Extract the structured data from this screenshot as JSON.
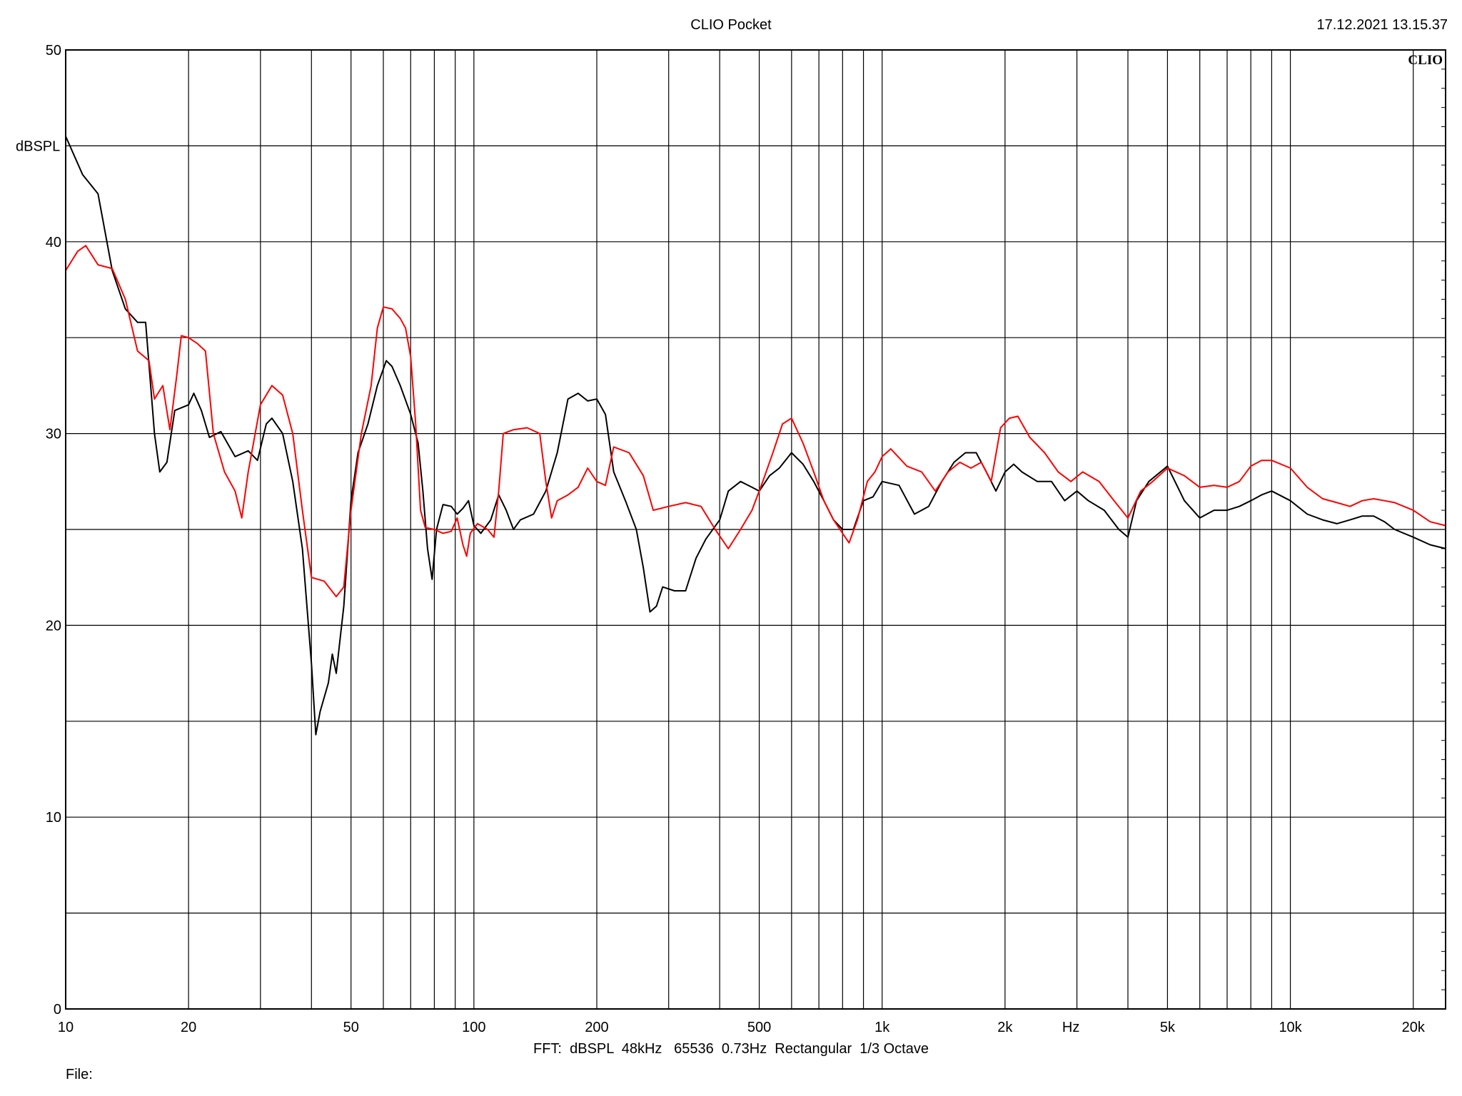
{
  "header": {
    "title": "CLIO Pocket",
    "timestamp": "17.12.2021 13.15.37"
  },
  "footer": {
    "settings": "FFT:  dBSPL  48kHz   65536  0.73Hz  Rectangular  1/3 Octave",
    "file_label": "File:"
  },
  "chart_data": {
    "type": "line",
    "brand": "CLIO",
    "ylabel": "dBSPL",
    "xlabel": "Hz",
    "xscale": "log",
    "xlim": [
      10,
      24000
    ],
    "ylim": [
      0,
      50
    ],
    "grid": true,
    "y_ticks": [
      {
        "value": 0,
        "label": "0"
      },
      {
        "value": 10,
        "label": "10"
      },
      {
        "value": 20,
        "label": "20"
      },
      {
        "value": 30,
        "label": "30"
      },
      {
        "value": 40,
        "label": "40"
      },
      {
        "value": 50,
        "label": "50"
      }
    ],
    "y_gridlines": [
      0,
      5,
      10,
      15,
      20,
      25,
      30,
      35,
      40,
      45,
      50
    ],
    "x_ticks": [
      {
        "value": 10,
        "label": "10"
      },
      {
        "value": 20,
        "label": "20"
      },
      {
        "value": 50,
        "label": "50"
      },
      {
        "value": 100,
        "label": "100"
      },
      {
        "value": 200,
        "label": "200"
      },
      {
        "value": 500,
        "label": "500"
      },
      {
        "value": 1000,
        "label": "1k"
      },
      {
        "value": 2000,
        "label": "2k"
      },
      {
        "value": 5000,
        "label": "5k"
      },
      {
        "value": 10000,
        "label": "10k"
      },
      {
        "value": 20000,
        "label": "20k"
      }
    ],
    "x_gridlines": [
      20,
      30,
      40,
      50,
      60,
      70,
      80,
      90,
      100,
      200,
      300,
      400,
      500,
      600,
      700,
      800,
      900,
      1000,
      2000,
      3000,
      4000,
      5000,
      6000,
      7000,
      8000,
      9000,
      10000,
      20000
    ],
    "series": [
      {
        "color": "#000000",
        "points": [
          [
            10,
            45.5
          ],
          [
            11,
            43.5
          ],
          [
            12,
            42.5
          ],
          [
            13,
            38.5
          ],
          [
            14,
            36.5
          ],
          [
            15,
            35.8
          ],
          [
            15.7,
            35.8
          ],
          [
            16.5,
            30
          ],
          [
            17,
            28
          ],
          [
            17.7,
            28.5
          ],
          [
            18.5,
            31.2
          ],
          [
            20,
            31.5
          ],
          [
            20.6,
            32.1
          ],
          [
            21.5,
            31.2
          ],
          [
            22.5,
            29.8
          ],
          [
            24,
            30.1
          ],
          [
            26,
            28.8
          ],
          [
            28,
            29.1
          ],
          [
            29.5,
            28.6
          ],
          [
            31,
            30.5
          ],
          [
            32,
            30.8
          ],
          [
            34,
            30
          ],
          [
            36,
            27.5
          ],
          [
            38,
            24
          ],
          [
            40,
            18
          ],
          [
            41,
            14.3
          ],
          [
            42,
            15.5
          ],
          [
            44,
            17
          ],
          [
            45,
            18.5
          ],
          [
            46,
            17.5
          ],
          [
            48,
            21
          ],
          [
            50,
            26.5
          ],
          [
            52,
            29
          ],
          [
            55,
            30.5
          ],
          [
            58,
            32.5
          ],
          [
            61,
            33.8
          ],
          [
            63,
            33.5
          ],
          [
            66,
            32.5
          ],
          [
            70,
            31
          ],
          [
            73,
            29.5
          ],
          [
            75,
            27
          ],
          [
            77,
            24
          ],
          [
            79,
            22.4
          ],
          [
            81,
            25
          ],
          [
            84,
            26.3
          ],
          [
            88,
            26.2
          ],
          [
            91,
            25.8
          ],
          [
            94,
            26.1
          ],
          [
            97,
            26.5
          ],
          [
            100,
            25.2
          ],
          [
            104,
            24.8
          ],
          [
            110,
            25.5
          ],
          [
            115,
            26.8
          ],
          [
            120,
            26
          ],
          [
            125,
            25
          ],
          [
            130,
            25.5
          ],
          [
            140,
            25.8
          ],
          [
            150,
            27
          ],
          [
            160,
            29
          ],
          [
            170,
            31.8
          ],
          [
            180,
            32.1
          ],
          [
            190,
            31.7
          ],
          [
            200,
            31.8
          ],
          [
            210,
            31
          ],
          [
            220,
            28
          ],
          [
            235,
            26.5
          ],
          [
            250,
            25
          ],
          [
            260,
            23
          ],
          [
            270,
            20.7
          ],
          [
            280,
            21
          ],
          [
            290,
            22
          ],
          [
            310,
            21.8
          ],
          [
            330,
            21.8
          ],
          [
            350,
            23.5
          ],
          [
            370,
            24.5
          ],
          [
            400,
            25.5
          ],
          [
            420,
            27
          ],
          [
            450,
            27.5
          ],
          [
            480,
            27.2
          ],
          [
            500,
            27
          ],
          [
            530,
            27.8
          ],
          [
            560,
            28.2
          ],
          [
            600,
            29
          ],
          [
            640,
            28.4
          ],
          [
            680,
            27.5
          ],
          [
            720,
            26.5
          ],
          [
            760,
            25.5
          ],
          [
            800,
            25
          ],
          [
            850,
            25
          ],
          [
            900,
            26.5
          ],
          [
            950,
            26.7
          ],
          [
            1000,
            27.5
          ],
          [
            1100,
            27.3
          ],
          [
            1200,
            25.8
          ],
          [
            1300,
            26.2
          ],
          [
            1400,
            27.5
          ],
          [
            1500,
            28.5
          ],
          [
            1600,
            29
          ],
          [
            1700,
            29
          ],
          [
            1800,
            28
          ],
          [
            1900,
            27
          ],
          [
            2000,
            28
          ],
          [
            2100,
            28.4
          ],
          [
            2200,
            28
          ],
          [
            2400,
            27.5
          ],
          [
            2600,
            27.5
          ],
          [
            2800,
            26.5
          ],
          [
            3000,
            27
          ],
          [
            3200,
            26.5
          ],
          [
            3500,
            26
          ],
          [
            3800,
            25
          ],
          [
            4000,
            24.6
          ],
          [
            4200,
            26.5
          ],
          [
            4500,
            27.5
          ],
          [
            5000,
            28.3
          ],
          [
            5500,
            26.5
          ],
          [
            6000,
            25.6
          ],
          [
            6500,
            26
          ],
          [
            7000,
            26
          ],
          [
            7500,
            26.2
          ],
          [
            8000,
            26.5
          ],
          [
            8500,
            26.8
          ],
          [
            9000,
            27
          ],
          [
            10000,
            26.5
          ],
          [
            11000,
            25.8
          ],
          [
            12000,
            25.5
          ],
          [
            13000,
            25.3
          ],
          [
            14000,
            25.5
          ],
          [
            15000,
            25.7
          ],
          [
            16000,
            25.7
          ],
          [
            17000,
            25.4
          ],
          [
            18000,
            25
          ],
          [
            20000,
            24.6
          ],
          [
            22000,
            24.2
          ],
          [
            24000,
            24
          ]
        ]
      },
      {
        "color": "#ff0000",
        "points": [
          [
            10,
            38.5
          ],
          [
            10.7,
            39.5
          ],
          [
            11.2,
            39.8
          ],
          [
            12,
            38.8
          ],
          [
            13,
            38.6
          ],
          [
            14,
            37
          ],
          [
            15,
            34.3
          ],
          [
            16,
            33.8
          ],
          [
            16.5,
            31.8
          ],
          [
            17.3,
            32.5
          ],
          [
            18,
            30.2
          ],
          [
            18.7,
            33
          ],
          [
            19.2,
            35.1
          ],
          [
            20,
            35
          ],
          [
            21,
            34.7
          ],
          [
            22,
            34.3
          ],
          [
            23,
            30
          ],
          [
            24.5,
            28
          ],
          [
            26,
            27
          ],
          [
            27,
            25.6
          ],
          [
            28,
            28
          ],
          [
            30,
            31.5
          ],
          [
            32,
            32.5
          ],
          [
            34,
            32
          ],
          [
            36,
            30
          ],
          [
            38,
            26
          ],
          [
            40,
            22.5
          ],
          [
            43,
            22.3
          ],
          [
            46,
            21.5
          ],
          [
            48,
            22
          ],
          [
            50,
            26
          ],
          [
            53,
            30
          ],
          [
            56,
            32.5
          ],
          [
            58,
            35.5
          ],
          [
            60,
            36.6
          ],
          [
            63,
            36.5
          ],
          [
            66,
            36
          ],
          [
            68,
            35.5
          ],
          [
            70,
            34
          ],
          [
            72,
            30.5
          ],
          [
            74,
            26
          ],
          [
            76,
            25.1
          ],
          [
            80,
            25
          ],
          [
            84,
            24.8
          ],
          [
            88,
            24.9
          ],
          [
            91,
            25.6
          ],
          [
            94,
            24.2
          ],
          [
            96,
            23.6
          ],
          [
            98,
            24.8
          ],
          [
            102,
            25.3
          ],
          [
            108,
            25
          ],
          [
            112,
            24.6
          ],
          [
            115,
            27
          ],
          [
            118,
            30
          ],
          [
            125,
            30.2
          ],
          [
            135,
            30.3
          ],
          [
            145,
            30
          ],
          [
            150,
            27.5
          ],
          [
            155,
            25.6
          ],
          [
            160,
            26.5
          ],
          [
            170,
            26.8
          ],
          [
            180,
            27.2
          ],
          [
            190,
            28.2
          ],
          [
            200,
            27.5
          ],
          [
            210,
            27.3
          ],
          [
            220,
            29.3
          ],
          [
            240,
            29
          ],
          [
            260,
            27.8
          ],
          [
            275,
            26
          ],
          [
            300,
            26.2
          ],
          [
            330,
            26.4
          ],
          [
            360,
            26.2
          ],
          [
            390,
            25
          ],
          [
            420,
            24
          ],
          [
            450,
            25
          ],
          [
            480,
            26
          ],
          [
            510,
            27.5
          ],
          [
            540,
            29
          ],
          [
            570,
            30.5
          ],
          [
            600,
            30.8
          ],
          [
            640,
            29.5
          ],
          [
            680,
            28
          ],
          [
            720,
            26.5
          ],
          [
            760,
            25.5
          ],
          [
            800,
            24.8
          ],
          [
            830,
            24.3
          ],
          [
            870,
            25.5
          ],
          [
            920,
            27.5
          ],
          [
            960,
            28
          ],
          [
            1000,
            28.8
          ],
          [
            1050,
            29.2
          ],
          [
            1150,
            28.3
          ],
          [
            1250,
            28
          ],
          [
            1350,
            27
          ],
          [
            1450,
            28
          ],
          [
            1550,
            28.5
          ],
          [
            1650,
            28.2
          ],
          [
            1750,
            28.5
          ],
          [
            1850,
            27.5
          ],
          [
            1950,
            30.3
          ],
          [
            2050,
            30.8
          ],
          [
            2150,
            30.9
          ],
          [
            2300,
            29.8
          ],
          [
            2500,
            29
          ],
          [
            2700,
            28
          ],
          [
            2900,
            27.5
          ],
          [
            3100,
            28
          ],
          [
            3400,
            27.5
          ],
          [
            3700,
            26.5
          ],
          [
            4000,
            25.6
          ],
          [
            4300,
            27
          ],
          [
            4600,
            27.5
          ],
          [
            5000,
            28.2
          ],
          [
            5500,
            27.8
          ],
          [
            6000,
            27.2
          ],
          [
            6500,
            27.3
          ],
          [
            7000,
            27.2
          ],
          [
            7500,
            27.5
          ],
          [
            8000,
            28.3
          ],
          [
            8500,
            28.6
          ],
          [
            9000,
            28.6
          ],
          [
            10000,
            28.2
          ],
          [
            11000,
            27.2
          ],
          [
            12000,
            26.6
          ],
          [
            13000,
            26.4
          ],
          [
            14000,
            26.2
          ],
          [
            15000,
            26.5
          ],
          [
            16000,
            26.6
          ],
          [
            17000,
            26.5
          ],
          [
            18000,
            26.4
          ],
          [
            20000,
            26
          ],
          [
            22000,
            25.4
          ],
          [
            24000,
            25.2
          ]
        ]
      }
    ]
  }
}
